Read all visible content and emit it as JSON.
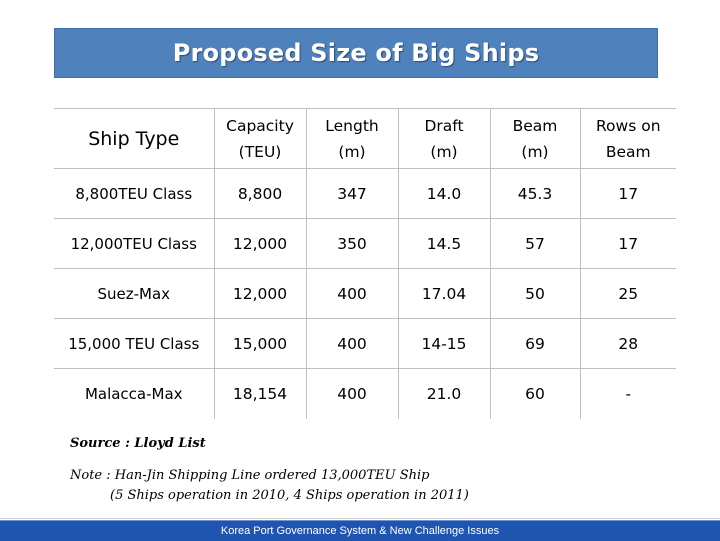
{
  "title": "Proposed Size of Big Ships",
  "table": {
    "headers": {
      "ship_type": "Ship Type",
      "capacity": [
        "Capacity",
        "(TEU)"
      ],
      "length": [
        "Length",
        "(m)"
      ],
      "draft": [
        "Draft",
        "(m)"
      ],
      "beam": [
        "Beam",
        "(m)"
      ],
      "rows": [
        "Rows on",
        "Beam"
      ]
    },
    "rows": [
      {
        "type": "8,800TEU Class",
        "capacity": "8,800",
        "length": "347",
        "draft": "14.0",
        "beam": "45.3",
        "rows": "17"
      },
      {
        "type": "12,000TEU Class",
        "capacity": "12,000",
        "length": "350",
        "draft": "14.5",
        "beam": "57",
        "rows": "17"
      },
      {
        "type": "Suez-Max",
        "capacity": "12,000",
        "length": "400",
        "draft": "17.04",
        "beam": "50",
        "rows": "25"
      },
      {
        "type": "15,000 TEU Class",
        "capacity": "15,000",
        "length": "400",
        "draft": "14-15",
        "beam": "69",
        "rows": "28"
      },
      {
        "type": "Malacca-Max",
        "capacity": "18,154",
        "length": "400",
        "draft": "21.0",
        "beam": "60",
        "rows": "-"
      }
    ]
  },
  "source": "Source : Lloyd List",
  "note": {
    "line1": "Note : Han-Jin Shipping Line ordered 13,000TEU Ship",
    "line2": "(5 Ships operation in 2010, 4 Ships operation in 2011)"
  },
  "footer": "Korea Port Governance System & New Challenge Issues"
}
